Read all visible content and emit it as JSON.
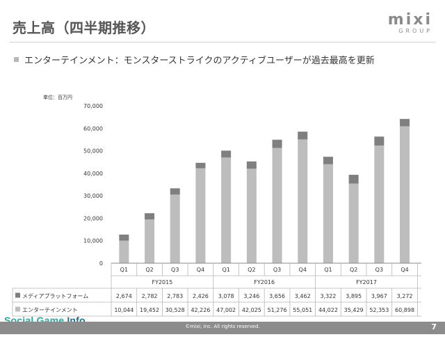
{
  "header": {
    "title": "売上高（四半期推移）",
    "logo_word": "mixi",
    "logo_sub": "GROUP"
  },
  "bullet": {
    "text": "エンターテインメント：モンスターストライクのアクティブユーザーが過去最高を更新"
  },
  "chart_data": {
    "type": "bar",
    "stacked": true,
    "unit_label": "単位：百万円",
    "ylim": [
      0,
      70000
    ],
    "yticks": [
      "0",
      "10,000",
      "20,000",
      "30,000",
      "40,000",
      "50,000",
      "60,000",
      "70,000"
    ],
    "ytick_values": [
      0,
      10000,
      20000,
      30000,
      40000,
      50000,
      60000,
      70000
    ],
    "categories": [
      "Q1",
      "Q2",
      "Q3",
      "Q4",
      "Q1",
      "Q2",
      "Q3",
      "Q4",
      "Q1",
      "Q2",
      "Q3",
      "Q4"
    ],
    "fiscal_years": [
      "FY2015",
      "FY2016",
      "FY2017"
    ],
    "series": [
      {
        "name": "エンターテインメント",
        "color": "#bdbdbd",
        "values": [
          10044,
          19452,
          30528,
          42226,
          47002,
          42025,
          51276,
          55051,
          44022,
          35429,
          52353,
          60898
        ],
        "labels": [
          "10,044",
          "19,452",
          "30,528",
          "42,226",
          "47,002",
          "42,025",
          "51,276",
          "55,051",
          "44,022",
          "35,429",
          "52,353",
          "60,898"
        ]
      },
      {
        "name": "メディアプラットフォーム",
        "color": "#7f7f7f",
        "values": [
          2674,
          2782,
          2783,
          2426,
          3078,
          3246,
          3656,
          3462,
          3322,
          3895,
          3967,
          3272
        ],
        "labels": [
          "2,674",
          "2,782",
          "2,783",
          "2,426",
          "3,078",
          "3,246",
          "3,656",
          "3,462",
          "3,322",
          "3,895",
          "3,967",
          "3,272"
        ]
      }
    ]
  },
  "footer": {
    "copyright": "©mixi, Inc. All rights reserved.",
    "page_number": "7",
    "watermark_main": "Social Game ",
    "watermark_info": "Info"
  }
}
